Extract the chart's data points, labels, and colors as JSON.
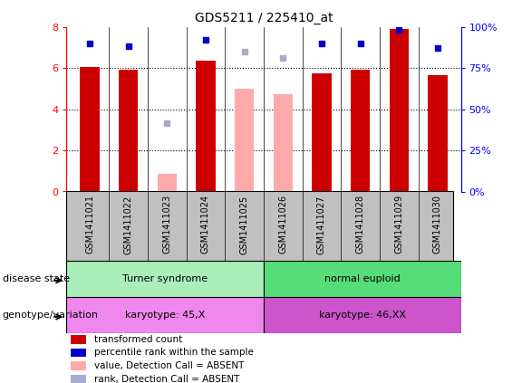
{
  "title": "GDS5211 / 225410_at",
  "samples": [
    "GSM1411021",
    "GSM1411022",
    "GSM1411023",
    "GSM1411024",
    "GSM1411025",
    "GSM1411026",
    "GSM1411027",
    "GSM1411028",
    "GSM1411029",
    "GSM1411030"
  ],
  "transformed_count": [
    6.05,
    5.9,
    null,
    6.35,
    null,
    null,
    5.75,
    5.9,
    7.9,
    5.65
  ],
  "transformed_count_absent": [
    null,
    null,
    0.85,
    null,
    5.0,
    4.75,
    null,
    null,
    null,
    null
  ],
  "percentile_rank_scaled": [
    7.2,
    7.05,
    null,
    7.35,
    null,
    null,
    7.2,
    7.2,
    7.85,
    6.95
  ],
  "percentile_rank_absent_scaled": [
    null,
    null,
    3.3,
    null,
    6.8,
    6.5,
    null,
    null,
    null,
    null
  ],
  "percentile_rank_right": [
    90,
    88,
    null,
    92,
    null,
    null,
    90,
    90,
    98,
    87
  ],
  "percentile_rank_absent_right": [
    null,
    null,
    41,
    null,
    85,
    81,
    null,
    null,
    null,
    null
  ],
  "bar_color_present": "#cc0000",
  "bar_color_absent": "#ffaaaa",
  "dot_color_present": "#0000cc",
  "dot_color_absent": "#aaaacc",
  "ylim_left": [
    0,
    8
  ],
  "ylim_right": [
    0,
    100
  ],
  "yticks_left": [
    0,
    2,
    4,
    6,
    8
  ],
  "yticks_right": [
    0,
    25,
    50,
    75,
    100
  ],
  "ytick_labels_right": [
    "0%",
    "25%",
    "50%",
    "75%",
    "100%"
  ],
  "disease_state_groups": [
    {
      "label": "Turner syndrome",
      "start": 0,
      "end": 4,
      "color": "#aaeebb"
    },
    {
      "label": "normal euploid",
      "start": 5,
      "end": 9,
      "color": "#55dd77"
    }
  ],
  "genotype_groups": [
    {
      "label": "karyotype: 45,X",
      "start": 0,
      "end": 4,
      "color": "#ee88ee"
    },
    {
      "label": "karyotype: 46,XX",
      "start": 5,
      "end": 9,
      "color": "#cc55cc"
    }
  ],
  "bar_width": 0.5,
  "background_xlabel": "#c0c0c0",
  "disease_state_label": "disease state",
  "genotype_label": "genotype/variation",
  "legend_items": [
    {
      "label": "transformed count",
      "color": "#cc0000"
    },
    {
      "label": "percentile rank within the sample",
      "color": "#0000cc"
    },
    {
      "label": "value, Detection Call = ABSENT",
      "color": "#ffaaaa"
    },
    {
      "label": "rank, Detection Call = ABSENT",
      "color": "#aaaacc"
    }
  ]
}
